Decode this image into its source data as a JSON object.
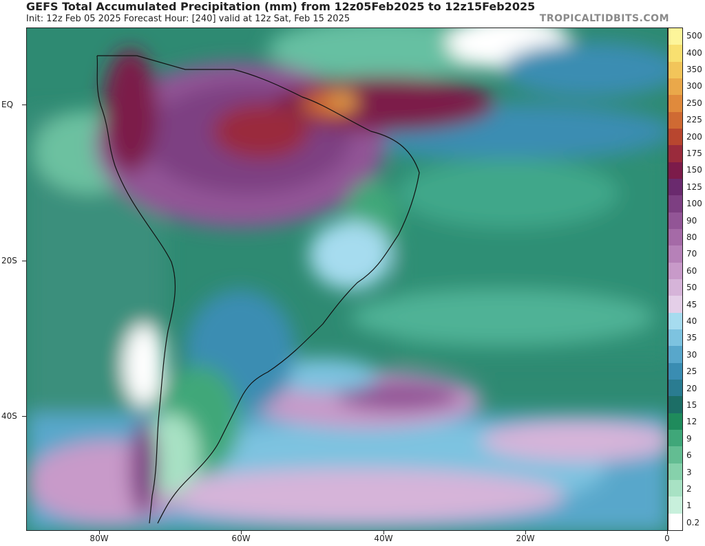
{
  "header": {
    "title": "GEFS Total Accumulated Precipitation (mm) from 12z05Feb2025 to 12z15Feb2025",
    "subtitle": "Init: 12z Feb 05 2025   Forecast Hour: [240]   valid at 12z Sat, Feb 15 2025",
    "brand": "TROPICALTIDBITS.COM"
  },
  "map": {
    "lat_labels": [
      "EQ",
      "20S",
      "40S"
    ],
    "lon_labels": [
      "80W",
      "60W",
      "40W",
      "20W",
      "0"
    ]
  },
  "colorbar": {
    "labels": [
      "0.2",
      "1",
      "2",
      "3",
      "6",
      "9",
      "12",
      "15",
      "20",
      "25",
      "30",
      "35",
      "40",
      "45",
      "50",
      "60",
      "70",
      "80",
      "90",
      "100",
      "125",
      "150",
      "175",
      "200",
      "225",
      "250",
      "300",
      "350",
      "400",
      "500"
    ],
    "colors": [
      "#ffffff",
      "#c8f0dc",
      "#a8e2c4",
      "#86d1ab",
      "#63bd92",
      "#3fa779",
      "#1f8b5c",
      "#1c6e66",
      "#2a7c91",
      "#3a8db2",
      "#58a7cb",
      "#7dc3e0",
      "#a6dcef",
      "#e4cfe8",
      "#d6b4d9",
      "#c89ac9",
      "#b681b8",
      "#a56aa7",
      "#925596",
      "#7d3f82",
      "#6a2a6e",
      "#7c1b4a",
      "#9a2b3c",
      "#b8462f",
      "#cf6a33",
      "#e08a3c",
      "#eaa84a",
      "#f2c55a",
      "#f8e070",
      "#fdf59a"
    ]
  },
  "legend_colors": {
    "ocean_base": "#2f8f78",
    "heavy_rain": "#7d3f82",
    "extreme_rain": "#cf6a33"
  }
}
